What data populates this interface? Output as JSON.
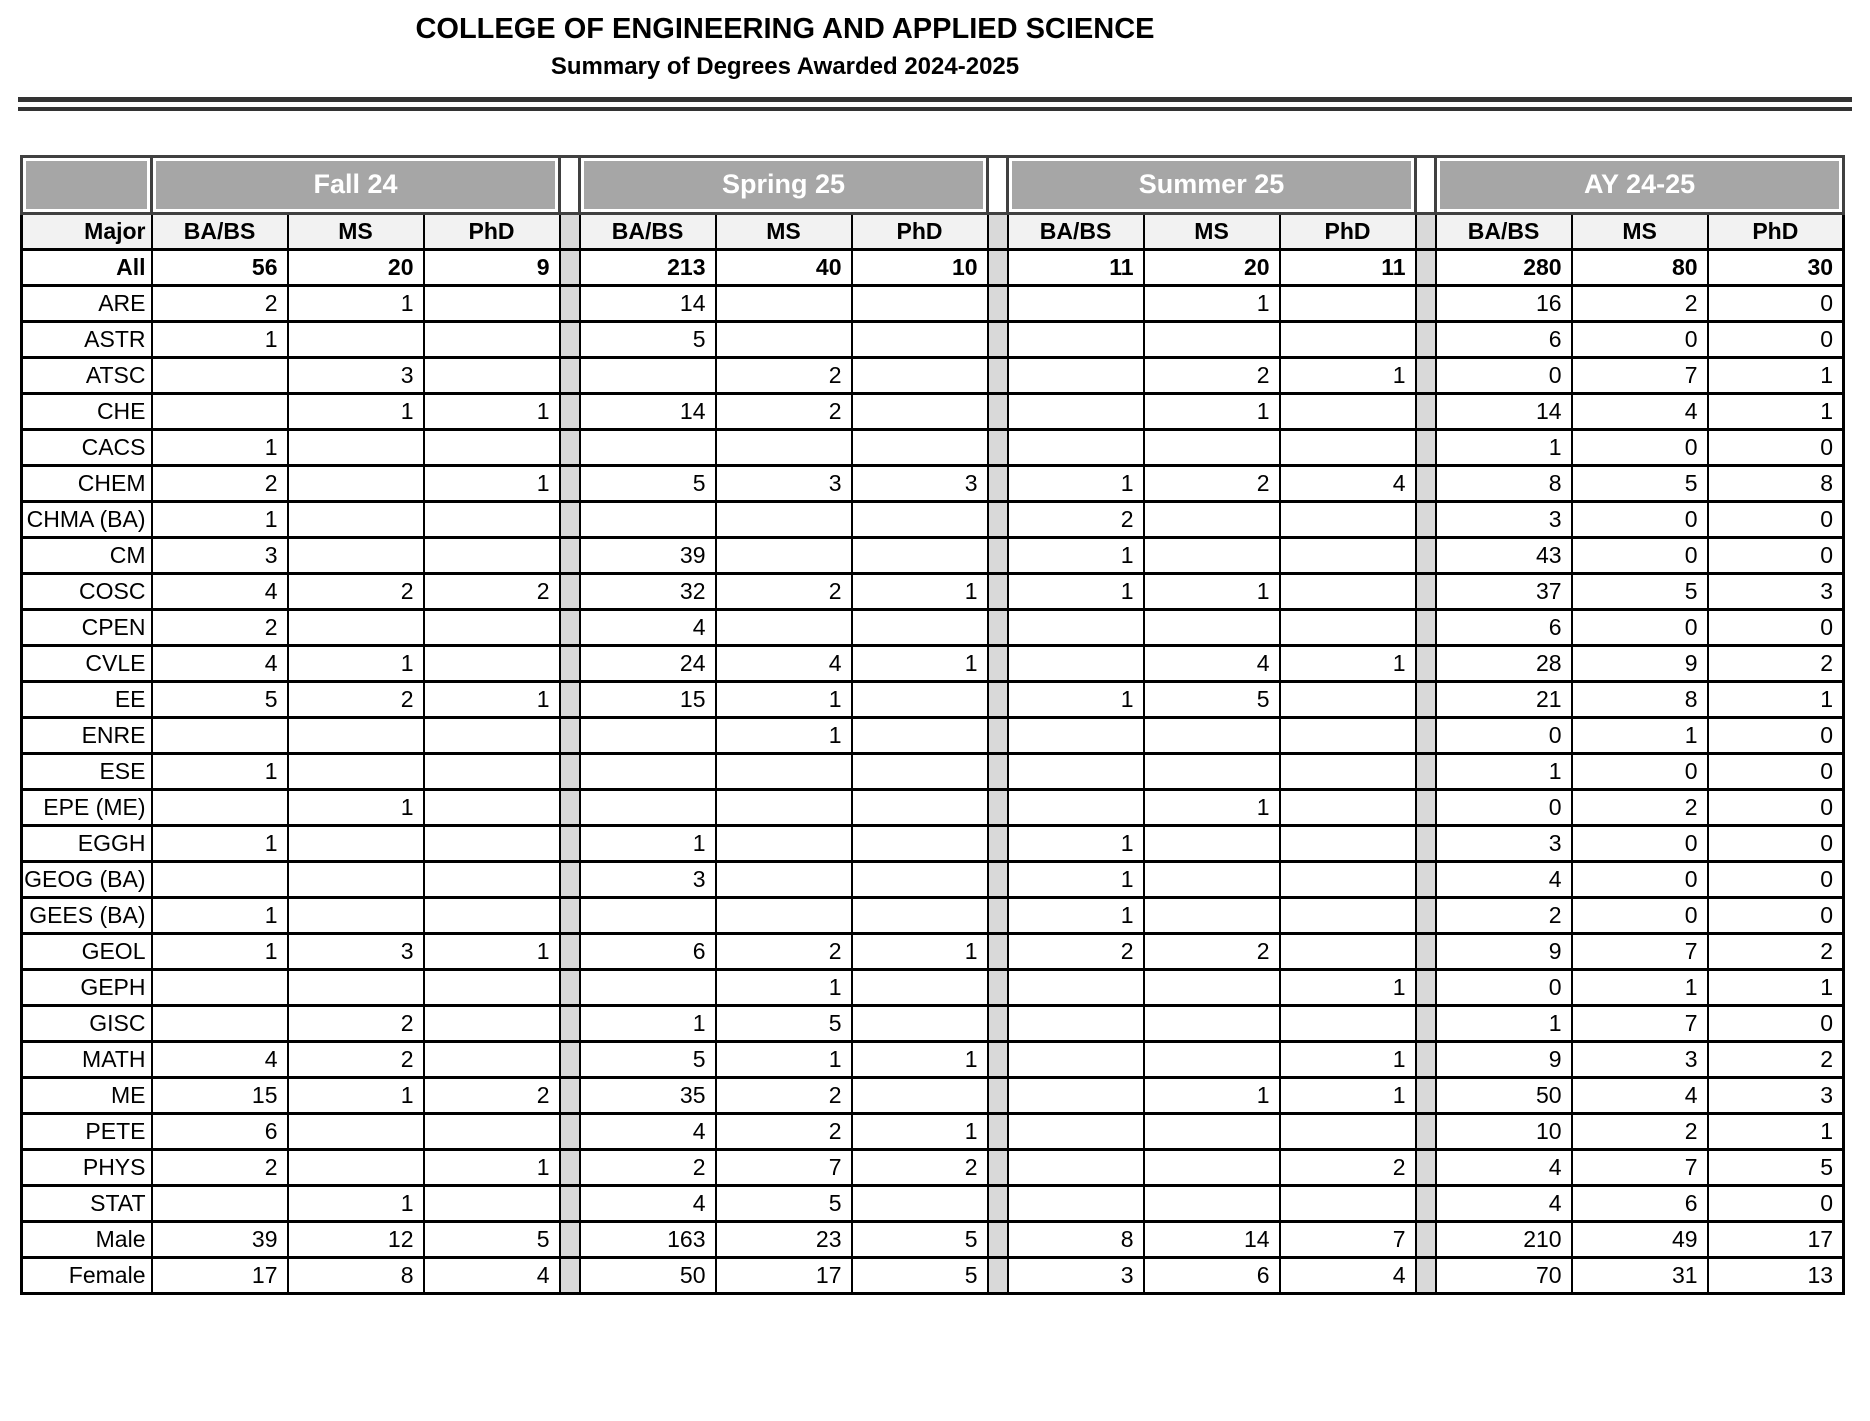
{
  "title": "COLLEGE OF ENGINEERING AND APPLIED SCIENCE",
  "subtitle": "Summary of Degrees Awarded 2024-2025",
  "table": {
    "major_header": "Major",
    "groups": [
      "Fall 24",
      "Spring 25",
      "Summer 25",
      "AY 24-25"
    ],
    "degree_columns": [
      "BA/BS",
      "MS",
      "PhD"
    ],
    "rows": [
      {
        "major": "All",
        "bold": true,
        "values": [
          "56",
          "20",
          "9",
          "213",
          "40",
          "10",
          "11",
          "20",
          "11",
          "280",
          "80",
          "30"
        ]
      },
      {
        "major": "ARE",
        "bold": false,
        "values": [
          "2",
          "1",
          "",
          "14",
          "",
          "",
          "",
          "1",
          "",
          "16",
          "2",
          "0"
        ]
      },
      {
        "major": "ASTR",
        "bold": false,
        "values": [
          "1",
          "",
          "",
          "5",
          "",
          "",
          "",
          "",
          "",
          "6",
          "0",
          "0"
        ]
      },
      {
        "major": "ATSC",
        "bold": false,
        "values": [
          "",
          "3",
          "",
          "",
          "2",
          "",
          "",
          "2",
          "1",
          "0",
          "7",
          "1"
        ]
      },
      {
        "major": "CHE",
        "bold": false,
        "values": [
          "",
          "1",
          "1",
          "14",
          "2",
          "",
          "",
          "1",
          "",
          "14",
          "4",
          "1"
        ]
      },
      {
        "major": "CACS",
        "bold": false,
        "values": [
          "1",
          "",
          "",
          "",
          "",
          "",
          "",
          "",
          "",
          "1",
          "0",
          "0"
        ]
      },
      {
        "major": "CHEM",
        "bold": false,
        "values": [
          "2",
          "",
          "1",
          "5",
          "3",
          "3",
          "1",
          "2",
          "4",
          "8",
          "5",
          "8"
        ]
      },
      {
        "major": "CHMA (BA)",
        "bold": false,
        "values": [
          "1",
          "",
          "",
          "",
          "",
          "",
          "2",
          "",
          "",
          "3",
          "0",
          "0"
        ]
      },
      {
        "major": "CM",
        "bold": false,
        "values": [
          "3",
          "",
          "",
          "39",
          "",
          "",
          "1",
          "",
          "",
          "43",
          "0",
          "0"
        ]
      },
      {
        "major": "COSC",
        "bold": false,
        "values": [
          "4",
          "2",
          "2",
          "32",
          "2",
          "1",
          "1",
          "1",
          "",
          "37",
          "5",
          "3"
        ]
      },
      {
        "major": "CPEN",
        "bold": false,
        "values": [
          "2",
          "",
          "",
          "4",
          "",
          "",
          "",
          "",
          "",
          "6",
          "0",
          "0"
        ]
      },
      {
        "major": "CVLE",
        "bold": false,
        "values": [
          "4",
          "1",
          "",
          "24",
          "4",
          "1",
          "",
          "4",
          "1",
          "28",
          "9",
          "2"
        ]
      },
      {
        "major": "EE",
        "bold": false,
        "values": [
          "5",
          "2",
          "1",
          "15",
          "1",
          "",
          "1",
          "5",
          "",
          "21",
          "8",
          "1"
        ]
      },
      {
        "major": "ENRE",
        "bold": false,
        "values": [
          "",
          "",
          "",
          "",
          "1",
          "",
          "",
          "",
          "",
          "0",
          "1",
          "0"
        ]
      },
      {
        "major": "ESE",
        "bold": false,
        "values": [
          "1",
          "",
          "",
          "",
          "",
          "",
          "",
          "",
          "",
          "1",
          "0",
          "0"
        ]
      },
      {
        "major": "EPE (ME)",
        "bold": false,
        "values": [
          "",
          "1",
          "",
          "",
          "",
          "",
          "",
          "1",
          "",
          "0",
          "2",
          "0"
        ]
      },
      {
        "major": "EGGH",
        "bold": false,
        "values": [
          "1",
          "",
          "",
          "1",
          "",
          "",
          "1",
          "",
          "",
          "3",
          "0",
          "0"
        ]
      },
      {
        "major": "GEOG (BA)",
        "bold": false,
        "values": [
          "",
          "",
          "",
          "3",
          "",
          "",
          "1",
          "",
          "",
          "4",
          "0",
          "0"
        ]
      },
      {
        "major": "GEES (BA)",
        "bold": false,
        "values": [
          "1",
          "",
          "",
          "",
          "",
          "",
          "1",
          "",
          "",
          "2",
          "0",
          "0"
        ]
      },
      {
        "major": "GEOL",
        "bold": false,
        "values": [
          "1",
          "3",
          "1",
          "6",
          "2",
          "1",
          "2",
          "2",
          "",
          "9",
          "7",
          "2"
        ]
      },
      {
        "major": "GEPH",
        "bold": false,
        "values": [
          "",
          "",
          "",
          "",
          "1",
          "",
          "",
          "",
          "1",
          "0",
          "1",
          "1"
        ]
      },
      {
        "major": "GISC",
        "bold": false,
        "values": [
          "",
          "2",
          "",
          "1",
          "5",
          "",
          "",
          "",
          "",
          "1",
          "7",
          "0"
        ]
      },
      {
        "major": "MATH",
        "bold": false,
        "values": [
          "4",
          "2",
          "",
          "5",
          "1",
          "1",
          "",
          "",
          "1",
          "9",
          "3",
          "2"
        ]
      },
      {
        "major": "ME",
        "bold": false,
        "values": [
          "15",
          "1",
          "2",
          "35",
          "2",
          "",
          "",
          "1",
          "1",
          "50",
          "4",
          "3"
        ]
      },
      {
        "major": "PETE",
        "bold": false,
        "values": [
          "6",
          "",
          "",
          "4",
          "2",
          "1",
          "",
          "",
          "",
          "10",
          "2",
          "1"
        ]
      },
      {
        "major": "PHYS",
        "bold": false,
        "values": [
          "2",
          "",
          "1",
          "2",
          "7",
          "2",
          "",
          "",
          "2",
          "4",
          "7",
          "5"
        ]
      },
      {
        "major": "STAT",
        "bold": false,
        "values": [
          "",
          "1",
          "",
          "4",
          "5",
          "",
          "",
          "",
          "",
          "4",
          "6",
          "0"
        ]
      },
      {
        "major": "Male",
        "bold": false,
        "values": [
          "39",
          "12",
          "5",
          "163",
          "23",
          "5",
          "8",
          "14",
          "7",
          "210",
          "49",
          "17"
        ]
      },
      {
        "major": "Female",
        "bold": false,
        "values": [
          "17",
          "8",
          "4",
          "50",
          "17",
          "5",
          "3",
          "6",
          "4",
          "70",
          "31",
          "13"
        ]
      }
    ]
  }
}
